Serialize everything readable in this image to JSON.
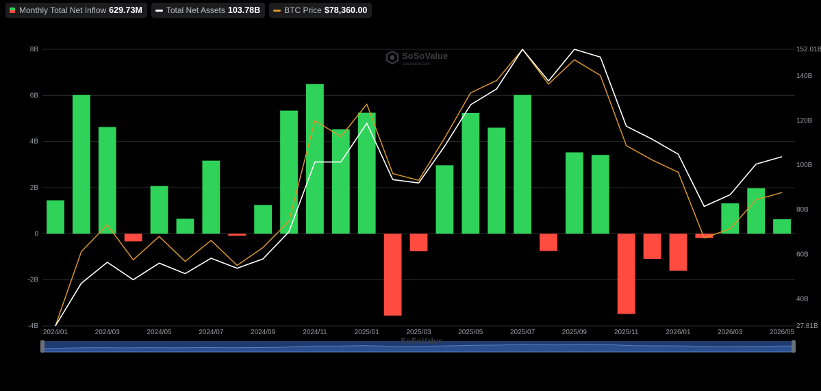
{
  "legend": {
    "inflow": {
      "label": "Monthly Total Net Inflow",
      "value": "629.73M"
    },
    "assets": {
      "label": "Total Net Assets",
      "value": "103.78B"
    },
    "price": {
      "label": "BTC Price",
      "value": "$78,360.00"
    }
  },
  "watermark": {
    "brand": "SoSoValue",
    "site": "sosovalue.com"
  },
  "colors": {
    "positive": "#2fd35a",
    "negative": "#ff4b40",
    "assets_line": "#ffffff",
    "price_line": "#d9952e",
    "grid": "#2a2a2a",
    "navigator": "#1f3a6e"
  },
  "chart_data": {
    "type": "bar",
    "categories": [
      "2024/01",
      "2024/02",
      "2024/03",
      "2024/04",
      "2024/05",
      "2024/06",
      "2024/07",
      "2024/08",
      "2024/09",
      "2024/10",
      "2024/11",
      "2024/12",
      "2025/01",
      "2025/02",
      "2025/03",
      "2025/04",
      "2025/05",
      "2025/06",
      "2025/07",
      "2025/08",
      "2025/09",
      "2025/10",
      "2025/11",
      "2025/12",
      "2026/01",
      "2026/02",
      "2026/03",
      "2026/04",
      "2026/05"
    ],
    "x_tick_labels": [
      "2024/01",
      "2024/03",
      "2024/05",
      "2024/07",
      "2024/09",
      "2024/11",
      "2025/01",
      "2025/03",
      "2025/05",
      "2025/07",
      "2025/09",
      "2025/11",
      "2026/01",
      "2026/03",
      "2026/05"
    ],
    "y_left": {
      "ticks": [
        "8B",
        "6B",
        "4B",
        "2B",
        "0",
        "-2B",
        "-4B"
      ],
      "min": -4,
      "max": 8,
      "unit": "B"
    },
    "y_right": {
      "ticks": [
        "152.01B",
        "140B",
        "120B",
        "100B",
        "80B",
        "60B",
        "40B",
        "27.81B"
      ],
      "min": 27.81,
      "max": 152.01
    },
    "series": [
      {
        "name": "Monthly Total Net Inflow",
        "kind": "bar",
        "values": [
          1.45,
          6.02,
          4.63,
          -0.33,
          2.07,
          0.65,
          3.17,
          -0.09,
          1.25,
          5.34,
          6.49,
          4.53,
          5.25,
          -3.55,
          -0.76,
          2.97,
          5.24,
          4.6,
          6.02,
          -0.75,
          3.53,
          3.42,
          -3.48,
          -1.09,
          -1.61,
          -0.19,
          1.32,
          1.97,
          0.63
        ]
      },
      {
        "name": "Total Net Assets",
        "kind": "line",
        "axis": "right",
        "values": [
          27.81,
          47,
          56.4,
          48.6,
          56,
          51.3,
          58.2,
          53.7,
          57.9,
          70.1,
          101.4,
          101.4,
          118.8,
          93.5,
          92,
          108.5,
          127.1,
          134.2,
          152.01,
          137.8,
          152.01,
          148.5,
          117.5,
          111.6,
          104.9,
          81.5,
          86.7,
          100.5,
          103.78
        ]
      },
      {
        "name": "BTC Price",
        "kind": "line",
        "axis": "right",
        "values": [
          27.81,
          61.2,
          73.2,
          57.5,
          68,
          56.8,
          66.2,
          55,
          63,
          74.9,
          120,
          112.8,
          127.4,
          96.2,
          93.2,
          112.2,
          132.5,
          138,
          152.01,
          136.4,
          147.3,
          140.3,
          108.8,
          102.3,
          96.8,
          67.3,
          71.4,
          84.5,
          87.7
        ]
      }
    ]
  }
}
